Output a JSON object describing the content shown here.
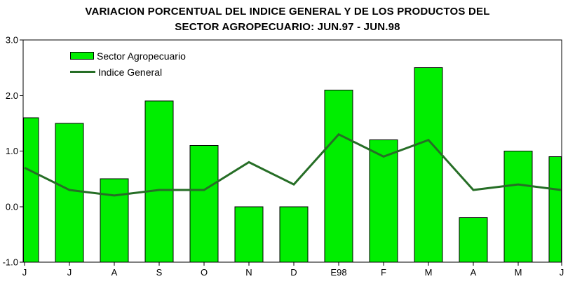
{
  "title": {
    "full": "VARIACION PORCENTUAL DEL INDICE GENERAL Y DE LOS PRODUCTOS DEL SECTOR AGROPECUARIO: JUN.97 - JUN.98"
  },
  "chart_data": {
    "type": "combo",
    "title": "VARIACION PORCENTUAL DEL INDICE GENERAL Y DE LOS PRODUCTOS DEL SECTOR AGROPECUARIO: JUN.97 - JUN.98",
    "title_lines": [
      "VARIACION PORCENTUAL DEL INDICE GENERAL Y DE LOS PRODUCTOS DEL",
      "SECTOR AGROPECUARIO: JUN.97 - JUN.98"
    ],
    "categories": [
      "J",
      "J",
      "A",
      "S",
      "O",
      "N",
      "D",
      "E98",
      "F",
      "M",
      "A",
      "M",
      "J"
    ],
    "series": [
      {
        "name": "Sector Agropecuario",
        "type": "bar",
        "color": "#00ee00",
        "border_color": "#000000",
        "values": [
          1.6,
          1.5,
          0.5,
          1.9,
          1.1,
          0.0,
          0.0,
          2.1,
          1.2,
          2.5,
          -0.2,
          1.0,
          0.9
        ]
      },
      {
        "name": "Indice General",
        "type": "line",
        "color": "#266e26",
        "values": [
          0.7,
          0.3,
          0.2,
          0.3,
          0.3,
          0.8,
          0.4,
          1.3,
          0.9,
          1.2,
          0.3,
          0.4,
          0.3
        ]
      }
    ],
    "xlabel": "",
    "ylabel": "",
    "ylim": [
      -1.0,
      3.0
    ],
    "yticks": [
      "3.0",
      "2.0",
      "1.0",
      "0.0",
      "-1.0"
    ],
    "grid": false,
    "bars_baseline": "axis_bottom",
    "legend_position": "top-left-inside",
    "frame": "full-box",
    "axis_color": "#000000"
  }
}
